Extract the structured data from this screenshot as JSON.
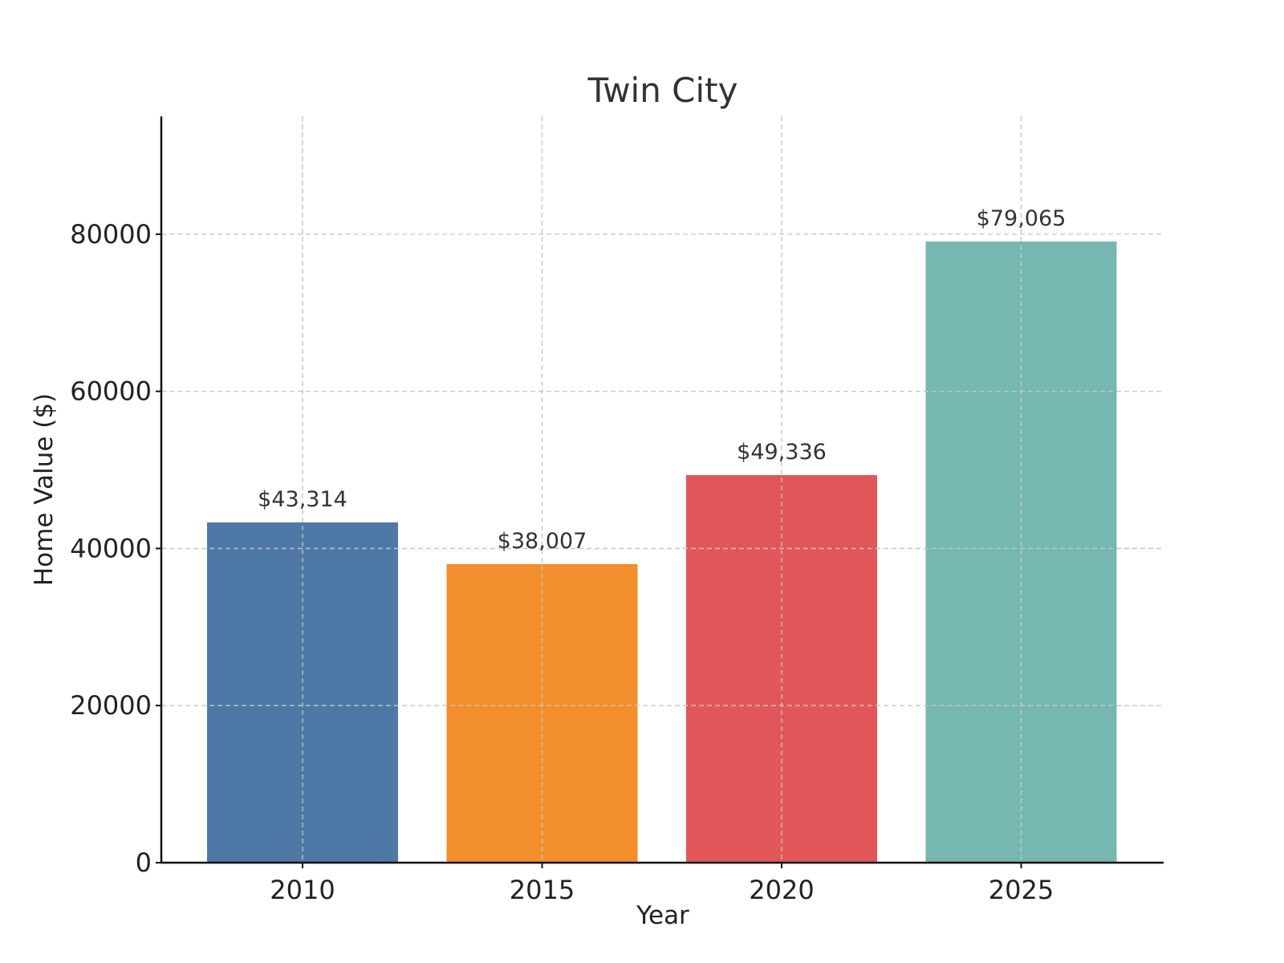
{
  "chart_data": {
    "type": "bar",
    "title": "Twin City",
    "xlabel": "Year",
    "ylabel": "Home Value ($)",
    "categories": [
      "2010",
      "2015",
      "2020",
      "2025"
    ],
    "values": [
      43314,
      38007,
      49336,
      79065
    ],
    "data_labels": [
      "$43,314",
      "$38,007",
      "$49,336",
      "$79,065"
    ],
    "colors": [
      "#4e79a7",
      "#f28e2b",
      "#e15759",
      "#76b7b2"
    ],
    "ylim": [
      0,
      95000
    ],
    "yticks": [
      0,
      20000,
      40000,
      60000,
      80000
    ],
    "ytick_labels": [
      "0",
      "20000",
      "40000",
      "60000",
      "80000"
    ],
    "grid": true,
    "legend": "none"
  }
}
